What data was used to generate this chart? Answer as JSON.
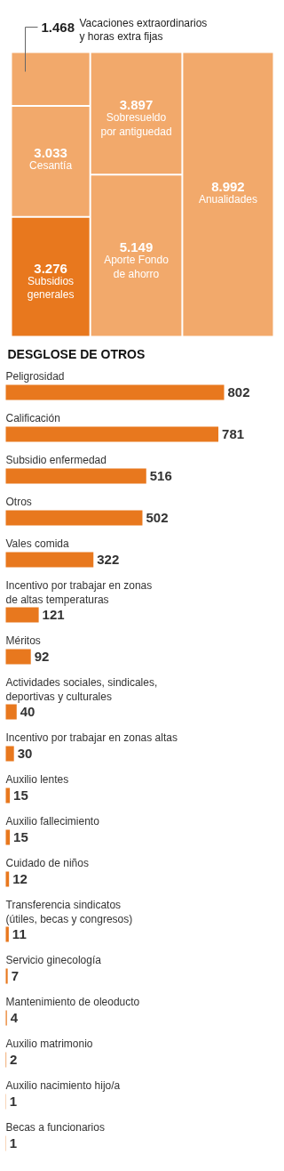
{
  "chart_data": [
    {
      "type": "other",
      "categories": [
        "Vacaciones extraordinarios\ny horas extra fijas",
        "Cesantía",
        "Subsidios\ngenerales",
        "Sobresueldo\npor antiguedad",
        "Aporte Fondo\nde ahorro",
        "Anualidades"
      ],
      "values": [
        1468,
        3033,
        3276,
        3897,
        5149,
        8992
      ],
      "value_labels": [
        "1.468",
        "3.033",
        "3.276",
        "3.897",
        "5.149",
        "8.992"
      ],
      "colors": [
        "#f2a96b",
        "#f2a96b",
        "#e8781e",
        "#f2a96b",
        "#f2a96b",
        "#f2a96b"
      ]
    },
    {
      "type": "bar",
      "orientation": "horizontal",
      "title": "DESGLOSE DE OTROS",
      "data_labels": true,
      "color": "#e8781e",
      "categories": [
        "Peligrosidad",
        "Calificación",
        "Subsidio enfermedad",
        "Otros",
        "Vales comida",
        "Incentivo por trabajar en zonas\nde altas temperaturas",
        "Méritos",
        "Actividades sociales, sindicales,\ndeportivas y culturales",
        "Incentivo por trabajar en zonas altas",
        "Auxilio lentes",
        "Auxilio fallecimiento",
        "Cuidado de niños",
        "Transferencia sindicatos\n(útiles, becas y congresos)",
        "Servicio ginecología",
        "Mantenimiento de oleoducto",
        "Auxilio matrimonio",
        "Auxilio nacimiento hijo/a",
        "Becas a funcionarios"
      ],
      "values": [
        802,
        781,
        516,
        502,
        322,
        121,
        92,
        40,
        30,
        15,
        15,
        12,
        11,
        7,
        4,
        2,
        1,
        1
      ]
    }
  ]
}
